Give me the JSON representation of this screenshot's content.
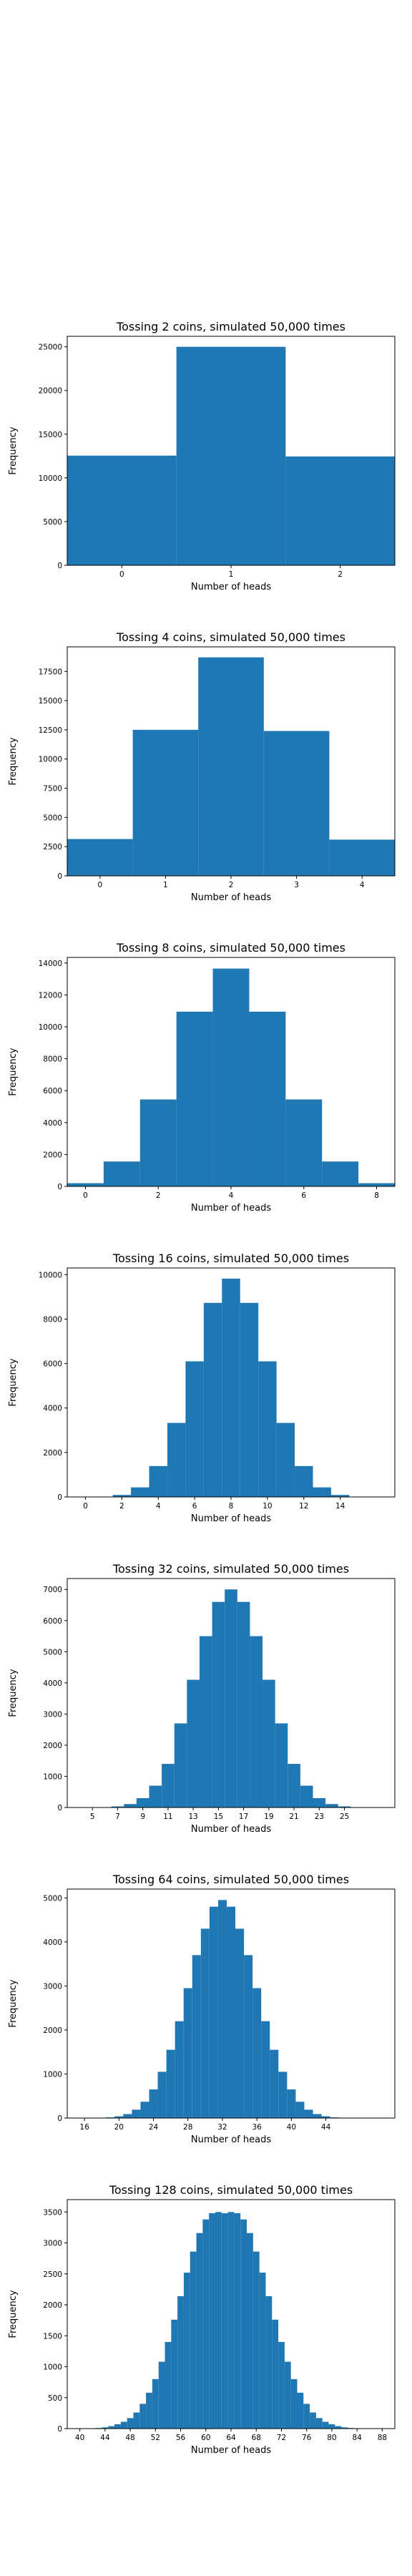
{
  "figure": {
    "background": "#ffffff",
    "bar_color": "#1f77b4"
  },
  "chart_data": [
    {
      "type": "bar",
      "title": "Tossing 2 coins, simulated 50,000 times",
      "xlabel": "Number of heads",
      "ylabel": "Frequency",
      "bins": [
        0,
        1,
        2
      ],
      "values": [
        12550,
        25000,
        12450
      ],
      "xticks": [
        0,
        1,
        2
      ],
      "yticks": [
        0,
        5000,
        10000,
        15000,
        20000,
        25000
      ],
      "xlim": [
        -0.5,
        2.5
      ],
      "ylim": [
        0,
        26200
      ]
    },
    {
      "type": "bar",
      "title": "Tossing 4 coins, simulated 50,000 times",
      "xlabel": "Number of heads",
      "ylabel": "Frequency",
      "bins": [
        0,
        1,
        2,
        3,
        4
      ],
      "values": [
        3150,
        12500,
        18700,
        12400,
        3100
      ],
      "xticks": [
        0,
        1,
        2,
        3,
        4
      ],
      "yticks": [
        0,
        2500,
        5000,
        7500,
        10000,
        12500,
        15000,
        17500
      ],
      "xlim": [
        -0.5,
        4.5
      ],
      "ylim": [
        0,
        19600
      ]
    },
    {
      "type": "bar",
      "title": "Tossing 8 coins, simulated 50,000 times",
      "xlabel": "Number of heads",
      "ylabel": "Frequency",
      "bins": [
        0,
        1,
        2,
        3,
        4,
        5,
        6,
        7,
        8
      ],
      "values": [
        200,
        1560,
        5450,
        10950,
        13650,
        10950,
        5450,
        1560,
        200
      ],
      "xticks": [
        0,
        2,
        4,
        6,
        8
      ],
      "yticks": [
        0,
        2000,
        4000,
        6000,
        8000,
        10000,
        12000,
        14000
      ],
      "xlim": [
        -0.5,
        8.5
      ],
      "ylim": [
        0,
        14350
      ]
    },
    {
      "type": "bar",
      "title": "Tossing 16 coins, simulated 50,000 times",
      "xlabel": "Number of heads",
      "ylabel": "Frequency",
      "bins": [
        0,
        1,
        2,
        3,
        4,
        5,
        6,
        7,
        8,
        9,
        10,
        11,
        12,
        13,
        14,
        15,
        16
      ],
      "values": [
        1,
        12,
        90,
        430,
        1390,
        3330,
        6100,
        8730,
        9820,
        8730,
        6100,
        3330,
        1390,
        430,
        90,
        12,
        1
      ],
      "xticks": [
        0,
        2,
        4,
        6,
        8,
        10,
        12,
        14
      ],
      "yticks": [
        0,
        2000,
        4000,
        6000,
        8000,
        10000
      ],
      "xlim": [
        -1,
        17
      ],
      "ylim": [
        0,
        10300
      ]
    },
    {
      "type": "bar",
      "title": "Tossing 32 coins, simulated 50,000 times",
      "xlabel": "Number of heads",
      "ylabel": "Frequency",
      "bins": [
        5,
        6,
        7,
        8,
        9,
        10,
        11,
        12,
        13,
        14,
        15,
        16,
        17,
        18,
        19,
        20,
        21,
        22,
        23,
        24,
        25,
        26,
        27
      ],
      "values": [
        3,
        10,
        35,
        110,
        300,
        700,
        1400,
        2700,
        4100,
        5500,
        6600,
        7000,
        6600,
        5500,
        4100,
        2700,
        1400,
        700,
        300,
        110,
        35,
        10,
        3
      ],
      "xticks": [
        5,
        7,
        9,
        11,
        13,
        15,
        17,
        19,
        21,
        23,
        25
      ],
      "yticks": [
        0,
        1000,
        2000,
        3000,
        4000,
        5000,
        6000,
        7000
      ],
      "xlim": [
        3,
        29
      ],
      "ylim": [
        0,
        7350
      ]
    },
    {
      "type": "bar",
      "title": "Tossing 64 coins, simulated 50,000 times",
      "xlabel": "Number of heads",
      "ylabel": "Frequency",
      "bins": [
        17,
        18,
        19,
        20,
        21,
        22,
        23,
        24,
        25,
        26,
        27,
        28,
        29,
        30,
        31,
        32,
        33,
        34,
        35,
        36,
        37,
        38,
        39,
        40,
        41,
        42,
        43,
        44,
        45,
        46
      ],
      "values": [
        2,
        5,
        15,
        40,
        90,
        190,
        370,
        650,
        1050,
        1550,
        2200,
        2950,
        3700,
        4300,
        4800,
        4950,
        4800,
        4300,
        3700,
        2950,
        2200,
        1550,
        1050,
        650,
        370,
        190,
        90,
        40,
        15,
        5
      ],
      "xticks": [
        16,
        20,
        24,
        28,
        32,
        36,
        40,
        44
      ],
      "yticks": [
        0,
        1000,
        2000,
        3000,
        4000,
        5000
      ],
      "xlim": [
        14,
        52
      ],
      "ylim": [
        0,
        5200
      ]
    },
    {
      "type": "bar",
      "title": "Tossing 128 coins, simulated 50,000 times",
      "xlabel": "Number of heads",
      "ylabel": "Frequency",
      "bins": [
        41,
        42,
        43,
        44,
        45,
        46,
        47,
        48,
        49,
        50,
        51,
        52,
        53,
        54,
        55,
        56,
        57,
        58,
        59,
        60,
        61,
        62,
        63,
        64,
        65,
        66,
        67,
        68,
        69,
        70,
        71,
        72,
        73,
        74,
        75,
        76,
        77,
        78,
        79,
        80,
        81,
        82,
        83,
        84,
        85,
        86,
        87
      ],
      "values": [
        2,
        4,
        10,
        20,
        40,
        70,
        110,
        170,
        260,
        400,
        580,
        800,
        1080,
        1400,
        1760,
        2140,
        2520,
        2860,
        3160,
        3380,
        3480,
        3500,
        3480,
        3500,
        3480,
        3380,
        3160,
        2860,
        2520,
        2140,
        1760,
        1400,
        1080,
        800,
        580,
        400,
        260,
        170,
        110,
        70,
        40,
        20,
        10,
        4,
        2,
        1,
        1
      ],
      "xticks": [
        40,
        44,
        48,
        52,
        56,
        60,
        64,
        68,
        72,
        76,
        80,
        84,
        88
      ],
      "yticks": [
        0,
        500,
        1000,
        1500,
        2000,
        2500,
        3000,
        3500
      ],
      "xlim": [
        38,
        90
      ],
      "ylim": [
        0,
        3700
      ]
    }
  ]
}
